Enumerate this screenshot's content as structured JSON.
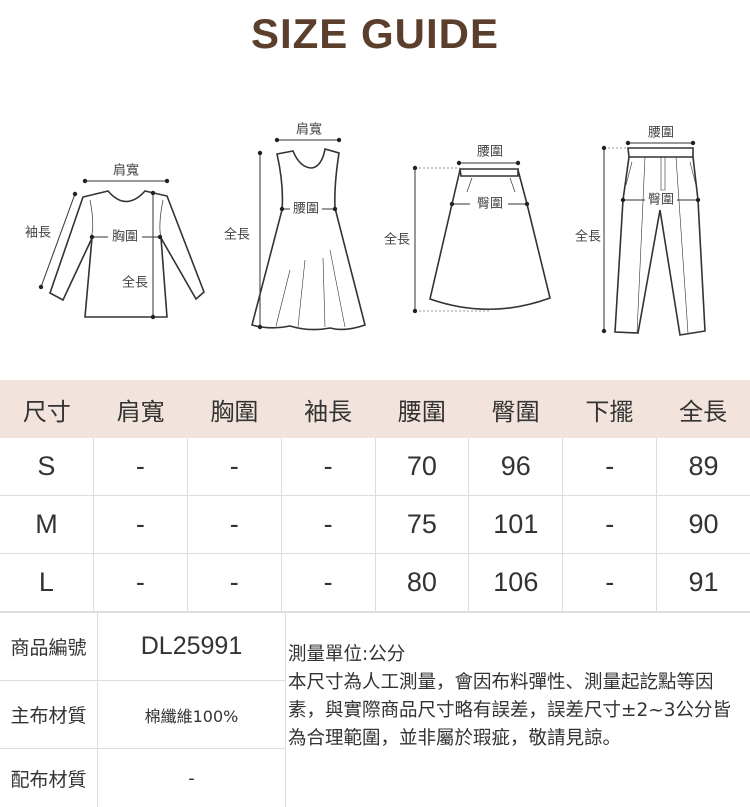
{
  "title": "SIZE GUIDE",
  "illustrations": {
    "top": {
      "shoulder": "肩寬",
      "sleeve": "袖長",
      "chest": "胸圍",
      "length": "全長"
    },
    "dress": {
      "shoulder": "肩寬",
      "waist": "腰圍",
      "length": "全長"
    },
    "skirt": {
      "waist": "腰圍",
      "hip": "臀圍",
      "length": "全長"
    },
    "pants": {
      "waist": "腰圍",
      "hip": "臀圍",
      "length": "全長"
    }
  },
  "size_table": {
    "header_bg": "#f2e4dc",
    "columns": [
      "尺寸",
      "肩寬",
      "胸圍",
      "袖長",
      "腰圍",
      "臀圍",
      "下擺",
      "全長"
    ],
    "rows": [
      [
        "S",
        "-",
        "-",
        "-",
        "70",
        "96",
        "-",
        "89"
      ],
      [
        "M",
        "-",
        "-",
        "-",
        "75",
        "101",
        "-",
        "90"
      ],
      [
        "L",
        "-",
        "-",
        "-",
        "80",
        "106",
        "-",
        "91"
      ]
    ]
  },
  "product_info": {
    "code_label": "商品編號",
    "code_value": "DL25991",
    "main_material_label": "主布材質",
    "main_material_value": "棉纖維100%",
    "sub_material_label": "配布材質",
    "sub_material_value": "-",
    "unit_note": "測量單位:公分",
    "disclaimer": "本尺寸為人工測量，會因布料彈性、測量起訖點等因素，與實際商品尺寸略有誤差，誤差尺寸±2~3公分皆為合理範圍，並非屬於瑕疵，敬請見諒。"
  }
}
